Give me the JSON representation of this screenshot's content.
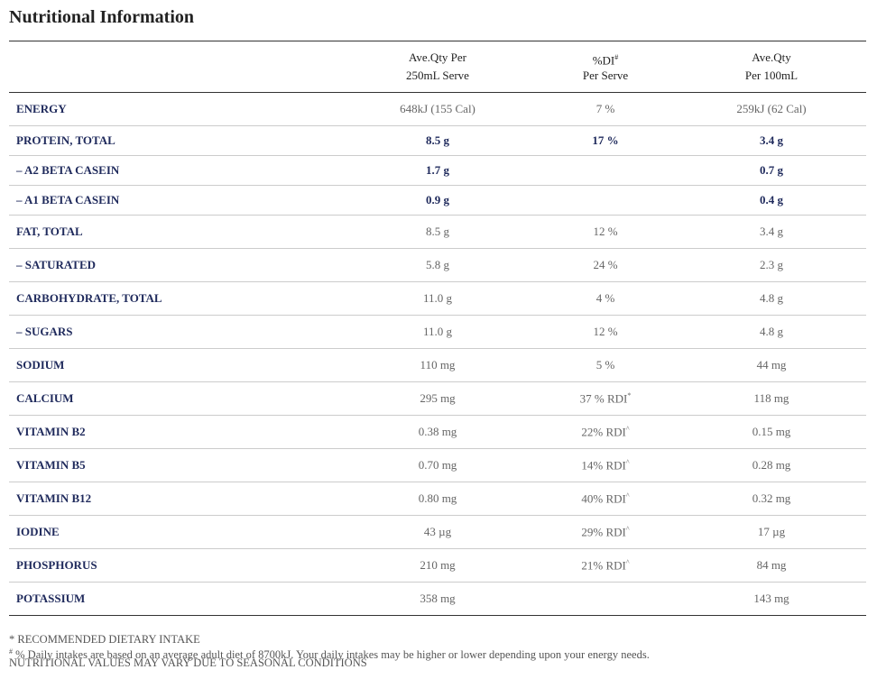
{
  "title": "Nutritional Information",
  "table": {
    "header": [
      [
        "Ave.Qty Per",
        "250mL Serve"
      ],
      [
        {
          "text": "%DI",
          "sup": "#"
        },
        "Per Serve"
      ],
      [
        "Ave.Qty",
        "Per 100mL"
      ]
    ],
    "rows": [
      {
        "label": "ENERGY",
        "cells": [
          "648kJ (155 Cal)",
          "7 %",
          "259kJ (62 Cal)"
        ]
      },
      {
        "label": "PROTEIN, TOTAL",
        "bold": true,
        "cells": [
          "8.5 g",
          "17 %",
          "3.4 g"
        ]
      },
      {
        "label": "– A2 BETA CASEIN",
        "bold": true,
        "cells": [
          "1.7 g",
          null,
          "0.7 g"
        ]
      },
      {
        "label": "– A1 BETA CASEIN",
        "bold": true,
        "cells": [
          "0.9 g",
          null,
          "0.4 g"
        ]
      },
      {
        "label": "FAT, TOTAL",
        "cells": [
          "8.5 g",
          "12 %",
          "3.4 g"
        ]
      },
      {
        "label": "– SATURATED",
        "cells": [
          "5.8 g",
          "24 %",
          "2.3 g"
        ]
      },
      {
        "label": "CARBOHYDRATE, TOTAL",
        "cells": [
          "11.0 g",
          "4 %",
          "4.8 g"
        ]
      },
      {
        "label": "– SUGARS",
        "cells": [
          "11.0 g",
          "12 %",
          "4.8 g"
        ]
      },
      {
        "label": "SODIUM",
        "cells": [
          "110 mg",
          "5 %",
          "44 mg"
        ]
      },
      {
        "label": "CALCIUM",
        "cells": [
          "295 mg",
          {
            "text": "37 % RDI",
            "sup": "*"
          },
          "118 mg"
        ]
      },
      {
        "label": "VITAMIN B2",
        "cells": [
          "0.38 mg",
          {
            "text": "22% RDI",
            "sup": "^"
          },
          "0.15 mg"
        ]
      },
      {
        "label": "VITAMIN B5",
        "cells": [
          "0.70 mg",
          {
            "text": "14% RDI",
            "sup": "^"
          },
          "0.28 mg"
        ]
      },
      {
        "label": "VITAMIN B12",
        "cells": [
          "0.80 mg",
          {
            "text": "40% RDI",
            "sup": "^"
          },
          "0.32 mg"
        ]
      },
      {
        "label": "IODINE",
        "cells": [
          "43 µg",
          {
            "text": "29% RDI",
            "sup": "^"
          },
          "17 µg"
        ]
      },
      {
        "label": "PHOSPHORUS",
        "cells": [
          "210 mg",
          {
            "text": "21% RDI",
            "sup": "^"
          },
          "84 mg"
        ]
      },
      {
        "label": "POTASSIUM",
        "cells": [
          "358 mg",
          null,
          "143 mg"
        ]
      }
    ]
  },
  "footnotes": [
    {
      "text": "* RECOMMENDED DIETARY INTAKE"
    },
    {
      "sup": "#",
      "text": " % Daily intakes are based on an average adult diet of 8700kJ. Your daily intakes may be higher or lower depending upon your energy needs."
    },
    {
      "text": "NUTRITIONAL VALUES MAY VARY DUE TO SEASONAL CONDITIONS"
    }
  ]
}
